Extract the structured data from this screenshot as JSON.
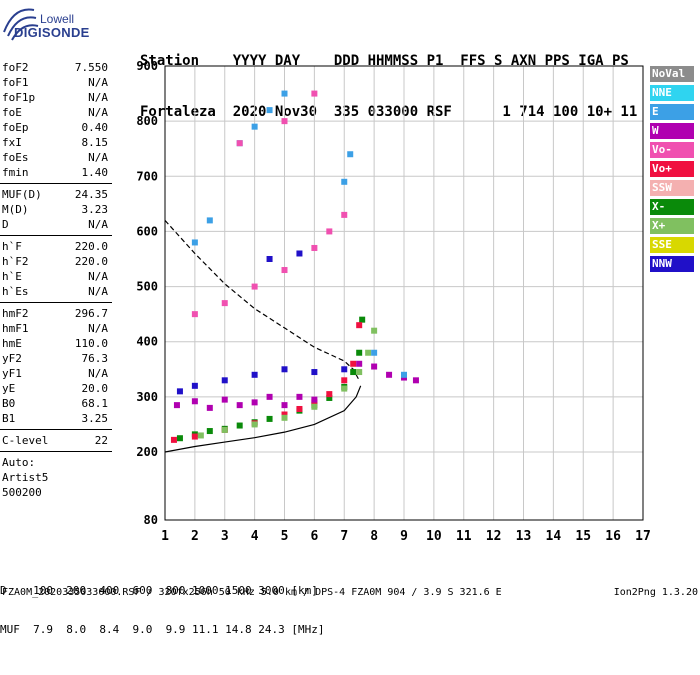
{
  "logo": {
    "top": "Lowell",
    "bottom": "DIGISONDE"
  },
  "header": {
    "line1": "Station    YYYY DAY    DDD HHMMSS P1  FFS S AXN PPS IGA PS",
    "line2": "Fortaleza  2020 Nov30  335 033000 RSF      1 714 100 10+ 11"
  },
  "params": [
    {
      "label": "foF2",
      "value": "7.550"
    },
    {
      "label": "foF1",
      "value": "N/A"
    },
    {
      "label": "foF1p",
      "value": "N/A"
    },
    {
      "label": "foE",
      "value": "N/A"
    },
    {
      "label": "foEp",
      "value": "0.40"
    },
    {
      "label": "fxI",
      "value": "8.15"
    },
    {
      "label": "foEs",
      "value": "N/A"
    },
    {
      "label": "fmin",
      "value": "1.40"
    },
    {
      "sep": true
    },
    {
      "label": "MUF(D)",
      "value": "24.35"
    },
    {
      "label": "M(D)",
      "value": "3.23"
    },
    {
      "label": "D",
      "value": "N/A"
    },
    {
      "sep": true
    },
    {
      "label": "h`F",
      "value": "220.0"
    },
    {
      "label": "h`F2",
      "value": "220.0"
    },
    {
      "label": "h`E",
      "value": "N/A"
    },
    {
      "label": "h`Es",
      "value": "N/A"
    },
    {
      "sep": true
    },
    {
      "label": "hmF2",
      "value": "296.7"
    },
    {
      "label": "hmF1",
      "value": "N/A"
    },
    {
      "label": "hmE",
      "value": "110.0"
    },
    {
      "label": "yF2",
      "value": "76.3"
    },
    {
      "label": "yF1",
      "value": "N/A"
    },
    {
      "label": "yE",
      "value": "20.0"
    },
    {
      "label": "B0",
      "value": "68.1"
    },
    {
      "label": "B1",
      "value": "3.25"
    },
    {
      "sep": true
    },
    {
      "label": "C-level",
      "value": "22"
    },
    {
      "sep": true
    },
    {
      "text": "Auto:"
    },
    {
      "text": "Artist5"
    },
    {
      "text": "500200"
    }
  ],
  "legend": [
    {
      "label": "NoVal",
      "color": "#8c8c8c"
    },
    {
      "label": "NNE",
      "color": "#2fd4f0"
    },
    {
      "label": "E",
      "color": "#3ca0e6"
    },
    {
      "label": "W",
      "color": "#b000b0"
    },
    {
      "label": "Vo-",
      "color": "#f050b0"
    },
    {
      "label": "Vo+",
      "color": "#f01040"
    },
    {
      "label": "SSW",
      "color": "#f4b0b0"
    },
    {
      "label": "X-",
      "color": "#0a8a0a"
    },
    {
      "label": "X+",
      "color": "#80c060"
    },
    {
      "label": "SSE",
      "color": "#d8d800"
    },
    {
      "label": "NNW",
      "color": "#2010c8"
    }
  ],
  "chart_data": {
    "type": "scatter",
    "xlim": [
      1,
      17
    ],
    "ylim": [
      80,
      900
    ],
    "x_ticks": [
      1,
      2,
      3,
      4,
      5,
      6,
      7,
      8,
      9,
      10,
      11,
      12,
      13,
      14,
      15,
      16,
      17
    ],
    "y_ticks": [
      80,
      200,
      300,
      400,
      500,
      600,
      700,
      800,
      900
    ],
    "grid": true,
    "series": [
      {
        "name": "X-",
        "color": "#0a8a0a",
        "x": [
          1.5,
          2.0,
          2.5,
          3.0,
          3.5,
          4.0,
          4.5,
          5.0,
          5.5,
          6.0,
          6.5,
          7.0,
          7.3,
          7.5,
          7.6
        ],
        "y": [
          225,
          232,
          238,
          242,
          248,
          254,
          260,
          267,
          275,
          285,
          298,
          318,
          345,
          380,
          440
        ]
      },
      {
        "name": "Vo+",
        "color": "#f01040",
        "x": [
          1.3,
          2.0,
          3.0,
          4.0,
          5.0,
          5.5,
          6.0,
          6.5,
          7.0,
          7.3,
          7.5
        ],
        "y": [
          222,
          228,
          240,
          252,
          268,
          278,
          290,
          305,
          330,
          360,
          430
        ]
      },
      {
        "name": "X+",
        "color": "#80c060",
        "x": [
          2.2,
          3.0,
          4.0,
          5.0,
          6.0,
          7.0,
          7.5,
          7.8,
          8.0
        ],
        "y": [
          230,
          240,
          250,
          262,
          282,
          315,
          345,
          380,
          420
        ]
      },
      {
        "name": "W",
        "color": "#b000b0",
        "x": [
          1.4,
          2.0,
          2.5,
          3.0,
          3.5,
          4.0,
          4.5,
          5.0,
          5.5,
          6.0,
          7.5,
          8.0,
          8.5,
          9.0,
          9.4
        ],
        "y": [
          285,
          292,
          280,
          295,
          285,
          290,
          300,
          285,
          300,
          295,
          360,
          355,
          340,
          335,
          330
        ]
      },
      {
        "name": "NNW",
        "color": "#2010c8",
        "x": [
          1.5,
          2.0,
          3.0,
          4.0,
          5.0,
          6.0,
          7.0,
          4.5,
          5.5
        ],
        "y": [
          310,
          320,
          330,
          340,
          350,
          345,
          350,
          550,
          560
        ]
      },
      {
        "name": "E",
        "color": "#3ca0e6",
        "x": [
          2.0,
          2.5,
          3.5,
          4.0,
          4.5,
          5.0,
          7.0,
          7.2,
          8.0,
          9.0
        ],
        "y": [
          580,
          620,
          760,
          790,
          820,
          850,
          690,
          740,
          380,
          340
        ]
      },
      {
        "name": "Vo-",
        "color": "#f050b0",
        "x": [
          2.0,
          3.0,
          4.0,
          5.0,
          6.0,
          6.5,
          7.0,
          3.5,
          5.0,
          6.0
        ],
        "y": [
          450,
          470,
          500,
          530,
          570,
          600,
          630,
          760,
          800,
          850
        ]
      }
    ],
    "curves": [
      {
        "style": "solid",
        "x": [
          1.0,
          2.0,
          3.0,
          4.0,
          5.0,
          6.0,
          7.0,
          7.4,
          7.55
        ],
        "y": [
          200,
          210,
          218,
          226,
          236,
          250,
          275,
          300,
          320
        ]
      },
      {
        "style": "dashed",
        "x": [
          1.0,
          2.0,
          3.0,
          4.0,
          5.0,
          6.0,
          7.0,
          7.3,
          7.5
        ],
        "y": [
          620,
          560,
          505,
          460,
          425,
          390,
          365,
          350,
          330
        ]
      }
    ]
  },
  "footer": {
    "d_row": "D    100  200  400  600  800 1000 1500 3000 [km]",
    "muf_row": "MUF  7.9  8.0  8.4  9.0  9.9 11.1 14.8 24.3 [MHz]",
    "file_line": "FZA0M_2020335033000.RSF / 320fx256h 50 kHz 5.0 km / DPS-4 FZA0M 904 / 3.9 S 321.6 E",
    "version": "Ion2Png 1.3.20"
  }
}
